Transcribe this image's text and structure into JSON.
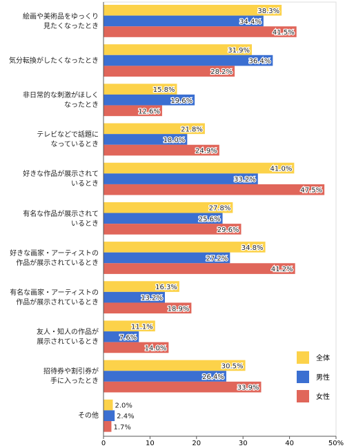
{
  "chart_data": {
    "type": "hbar",
    "categories": [
      "絵画や美術品をゆっくり\n見たくなったとき",
      "気分転換がしたくなったとき",
      "非日常的な刺激がほしく\nなったとき",
      "テレビなどで話題に\nなっているとき",
      "好きな作品が展示されて\nいるとき",
      "有名な作品が展示されて\nいるとき",
      "好きな画家・アーティストの\n作品が展示されているとき",
      "有名な画家・アーティストの\n作品が展示されているとき",
      "友人・知人の作品が\n展示されているとき",
      "招待券や割引券が\n手に入ったとき",
      "その他"
    ],
    "series": [
      {
        "name": "全体",
        "color": "#fcd24a",
        "values": [
          38.3,
          31.9,
          15.8,
          21.8,
          41.0,
          27.8,
          34.8,
          16.3,
          11.1,
          30.5,
          2.0
        ],
        "value_labels": [
          "38.3%",
          "31.9%",
          "15.8%",
          "21.8%",
          "41.0%",
          "27.8%",
          "34.8%",
          "16.3%",
          "11.1%",
          "30.5%",
          "2.0%"
        ]
      },
      {
        "name": "男性",
        "color": "#3b6fd1",
        "values": [
          34.4,
          36.4,
          19.6,
          18.0,
          33.2,
          25.6,
          27.2,
          13.2,
          7.6,
          26.4,
          2.4
        ],
        "value_labels": [
          "34.4%",
          "36.4%",
          "19.6%",
          "18.0%",
          "33.2%",
          "25.6%",
          "27.2%",
          "13.2%",
          "7.6%",
          "26.4%",
          "2.4%"
        ]
      },
      {
        "name": "女性",
        "color": "#e0665a",
        "values": [
          41.5,
          28.2,
          12.6,
          24.9,
          47.5,
          29.6,
          41.2,
          18.9,
          14.0,
          33.9,
          1.7
        ],
        "value_labels": [
          "41.5%",
          "28.2%",
          "12.6%",
          "24.9%",
          "47.5%",
          "29.6%",
          "41.2%",
          "18.9%",
          "14.0%",
          "33.9%",
          "1.7%"
        ]
      }
    ],
    "xlim": [
      0,
      50
    ],
    "xticks": [
      0,
      10,
      20,
      30,
      40,
      {
        "value": 50,
        "label": "50%"
      }
    ],
    "legend": "lower-right"
  }
}
